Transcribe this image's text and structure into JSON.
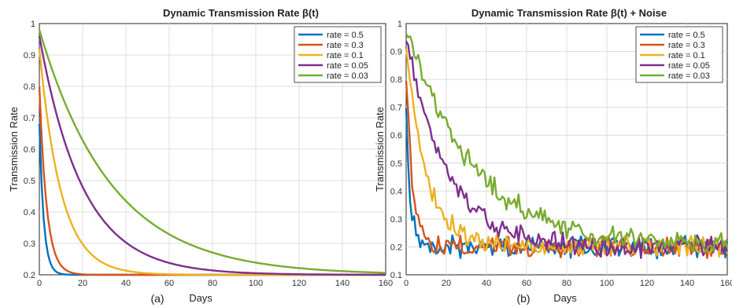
{
  "panel_labels": [
    "(a)",
    "(b)"
  ],
  "chart_data": [
    {
      "type": "line",
      "title": "Dynamic Transmission Rate β(t)",
      "xlabel": "Days",
      "ylabel": "Transmission Rate",
      "xlim": [
        0,
        160
      ],
      "ylim": [
        0.2,
        1.0
      ],
      "xticks": [
        0,
        20,
        40,
        60,
        80,
        100,
        120,
        140,
        160
      ],
      "yticks": [
        0.2,
        0.3,
        0.4,
        0.5,
        0.6,
        0.7,
        0.8,
        0.9,
        1
      ],
      "grid": true,
      "legend_position": "top-right",
      "noise": false,
      "series": [
        {
          "name": "rate = 0.5",
          "rate": 0.5,
          "start": 0.68,
          "color": "#0072bd"
        },
        {
          "name": "rate = 0.3",
          "rate": 0.3,
          "start": 0.8,
          "color": "#d95319"
        },
        {
          "name": "rate = 0.1",
          "rate": 0.1,
          "start": 0.92,
          "color": "#edb120"
        },
        {
          "name": "rate = 0.05",
          "rate": 0.05,
          "start": 0.96,
          "color": "#7e2f8e"
        },
        {
          "name": "rate = 0.03",
          "rate": 0.03,
          "start": 0.98,
          "color": "#77ac30"
        }
      ]
    },
    {
      "type": "line",
      "title": "Dynamic Transmission Rate β(t) + Noise",
      "xlabel": "Days",
      "ylabel": "Transmission Rate",
      "xlim": [
        0,
        160
      ],
      "ylim": [
        0.1,
        1.0
      ],
      "xticks": [
        0,
        20,
        40,
        60,
        80,
        100,
        120,
        140,
        160
      ],
      "yticks": [
        0.1,
        0.2,
        0.3,
        0.4,
        0.5,
        0.6,
        0.7,
        0.8,
        0.9,
        1
      ],
      "grid": true,
      "legend_position": "top-right",
      "noise": true,
      "series": [
        {
          "name": "rate = 0.5",
          "rate": 0.5,
          "start": 0.71,
          "color": "#0072bd"
        },
        {
          "name": "rate = 0.3",
          "rate": 0.3,
          "start": 0.81,
          "color": "#d95319"
        },
        {
          "name": "rate = 0.1",
          "rate": 0.1,
          "start": 0.93,
          "color": "#edb120"
        },
        {
          "name": "rate = 0.05",
          "rate": 0.05,
          "start": 0.96,
          "color": "#7e2f8e"
        },
        {
          "name": "rate = 0.03",
          "rate": 0.03,
          "start": 0.99,
          "color": "#77ac30"
        }
      ]
    }
  ]
}
